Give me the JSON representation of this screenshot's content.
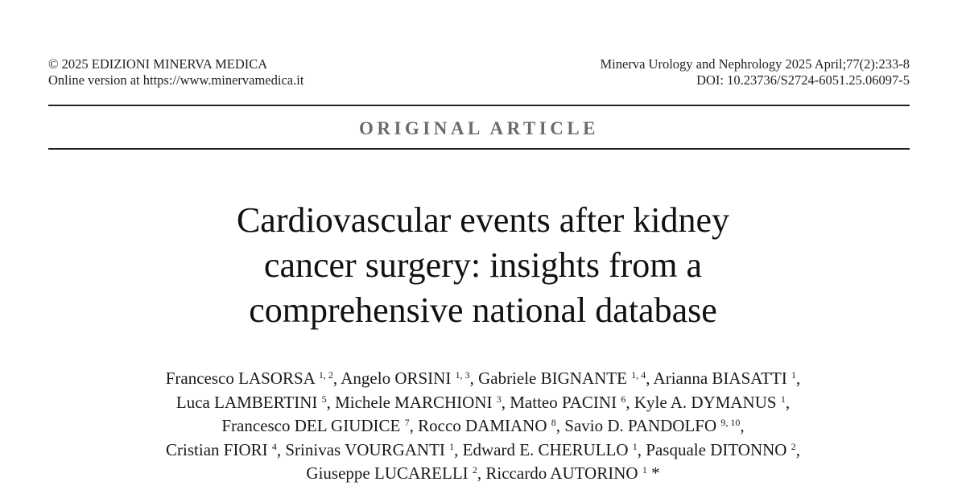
{
  "header": {
    "left": {
      "copyright": "© 2025 EDIZIONI MINERVA MEDICA",
      "online": "Online version at https://www.minervamedica.it"
    },
    "right": {
      "journal": "Minerva Urology and Nephrology 2025 April;77(2):233-8",
      "doi": "DOI: 10.23736/S2724-6051.25.06097-5"
    }
  },
  "section_label": "ORIGINAL ARTICLE",
  "title_lines": [
    "Cardiovascular events after kidney",
    "cancer surgery: insights from a",
    "comprehensive national database"
  ],
  "author_lines": [
    [
      {
        "name": "Francesco LASORSA",
        "aff": "1, 2",
        "sep": ", "
      },
      {
        "name": "Angelo ORSINI",
        "aff": "1, 3",
        "sep": ", "
      },
      {
        "name": "Gabriele BIGNANTE",
        "aff": "1, 4",
        "sep": ", "
      },
      {
        "name": "Arianna BIASATTI",
        "aff": "1",
        "sep": ","
      }
    ],
    [
      {
        "name": "Luca LAMBERTINI",
        "aff": "5",
        "sep": ", "
      },
      {
        "name": "Michele MARCHIONI",
        "aff": "3",
        "sep": ", "
      },
      {
        "name": "Matteo PACINI",
        "aff": "6",
        "sep": ", "
      },
      {
        "name": "Kyle A. DYMANUS",
        "aff": "1",
        "sep": ","
      }
    ],
    [
      {
        "name": "Francesco DEL GIUDICE",
        "aff": "7",
        "sep": ", "
      },
      {
        "name": "Rocco DAMIANO",
        "aff": "8",
        "sep": ", "
      },
      {
        "name": "Savio D. PANDOLFO",
        "aff": "9, 10",
        "sep": ","
      }
    ],
    [
      {
        "name": "Cristian FIORI",
        "aff": "4",
        "sep": ", "
      },
      {
        "name": "Srinivas VOURGANTI",
        "aff": "1",
        "sep": ", "
      },
      {
        "name": "Edward E. CHERULLO",
        "aff": "1",
        "sep": ", "
      },
      {
        "name": "Pasquale DITONNO",
        "aff": "2",
        "sep": ","
      }
    ],
    [
      {
        "name": "Giuseppe LUCARELLI",
        "aff": "2",
        "sep": ", "
      },
      {
        "name": "Riccardo AUTORINO",
        "aff": "1",
        "sep": " *"
      }
    ]
  ]
}
